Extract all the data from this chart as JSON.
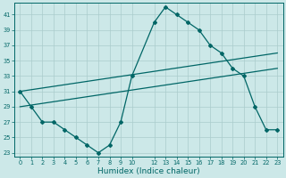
{
  "xlabel": "Humidex (Indice chaleur)",
  "bg_color": "#cce8e8",
  "grid_color": "#aacccc",
  "line_color": "#006666",
  "series1_x": [
    0,
    1,
    2,
    3,
    4,
    5,
    6,
    7,
    8,
    9,
    10,
    12,
    13,
    14,
    15,
    16,
    17,
    18,
    19,
    20,
    21,
    22,
    23
  ],
  "series1_y": [
    31,
    29,
    27,
    27,
    26,
    25,
    24,
    23,
    24,
    27,
    33,
    40,
    42,
    41,
    40,
    39,
    37,
    36,
    34,
    33,
    29,
    26,
    26
  ],
  "series2_x": [
    0,
    23
  ],
  "series2_y": [
    31,
    36
  ],
  "series3_x": [
    0,
    23
  ],
  "series3_y": [
    29,
    34
  ],
  "ylim": [
    22.5,
    42.5
  ],
  "xlim": [
    -0.5,
    23.5
  ],
  "yticks": [
    23,
    25,
    27,
    29,
    31,
    33,
    35,
    37,
    39,
    41
  ],
  "xticks": [
    0,
    1,
    2,
    3,
    4,
    5,
    6,
    7,
    8,
    9,
    10,
    12,
    13,
    14,
    15,
    16,
    17,
    18,
    19,
    20,
    21,
    22,
    23
  ],
  "xlabel_fontsize": 6.5,
  "tick_fontsize": 4.8
}
